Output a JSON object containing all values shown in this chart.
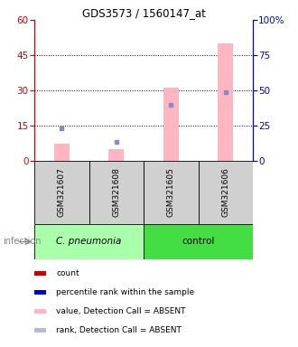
{
  "title": "GDS3573 / 1560147_at",
  "samples": [
    "GSM321607",
    "GSM321608",
    "GSM321605",
    "GSM321606"
  ],
  "pink_bar_values": [
    7.5,
    5.0,
    31.0,
    50.0
  ],
  "blue_marker_values": [
    23.0,
    13.5,
    40.0,
    49.0
  ],
  "ylim_left": [
    0,
    60
  ],
  "ylim_right": [
    0,
    100
  ],
  "yticks_left": [
    0,
    15,
    30,
    45,
    60
  ],
  "yticks_right": [
    0,
    25,
    50,
    75,
    100
  ],
  "left_axis_color": "#cc0000",
  "right_axis_color": "#0000cc",
  "pink_bar_color": "#FFB6C1",
  "blue_marker_color": "#8888cc",
  "legend_items": [
    {
      "color": "#cc0000",
      "label": "count"
    },
    {
      "color": "#0000cc",
      "label": "percentile rank within the sample"
    },
    {
      "color": "#FFB6C1",
      "label": "value, Detection Call = ABSENT"
    },
    {
      "color": "#b8b8dd",
      "label": "rank, Detection Call = ABSENT"
    }
  ],
  "infection_label": "infection",
  "background_color": "#ffffff",
  "sample_box_color": "#d0d0d0",
  "group_info": [
    {
      "label": "C. pneumonia",
      "start": 0,
      "end": 1,
      "color": "#aaffaa",
      "italic": true
    },
    {
      "label": "control",
      "start": 2,
      "end": 3,
      "color": "#44dd44",
      "italic": false
    }
  ]
}
